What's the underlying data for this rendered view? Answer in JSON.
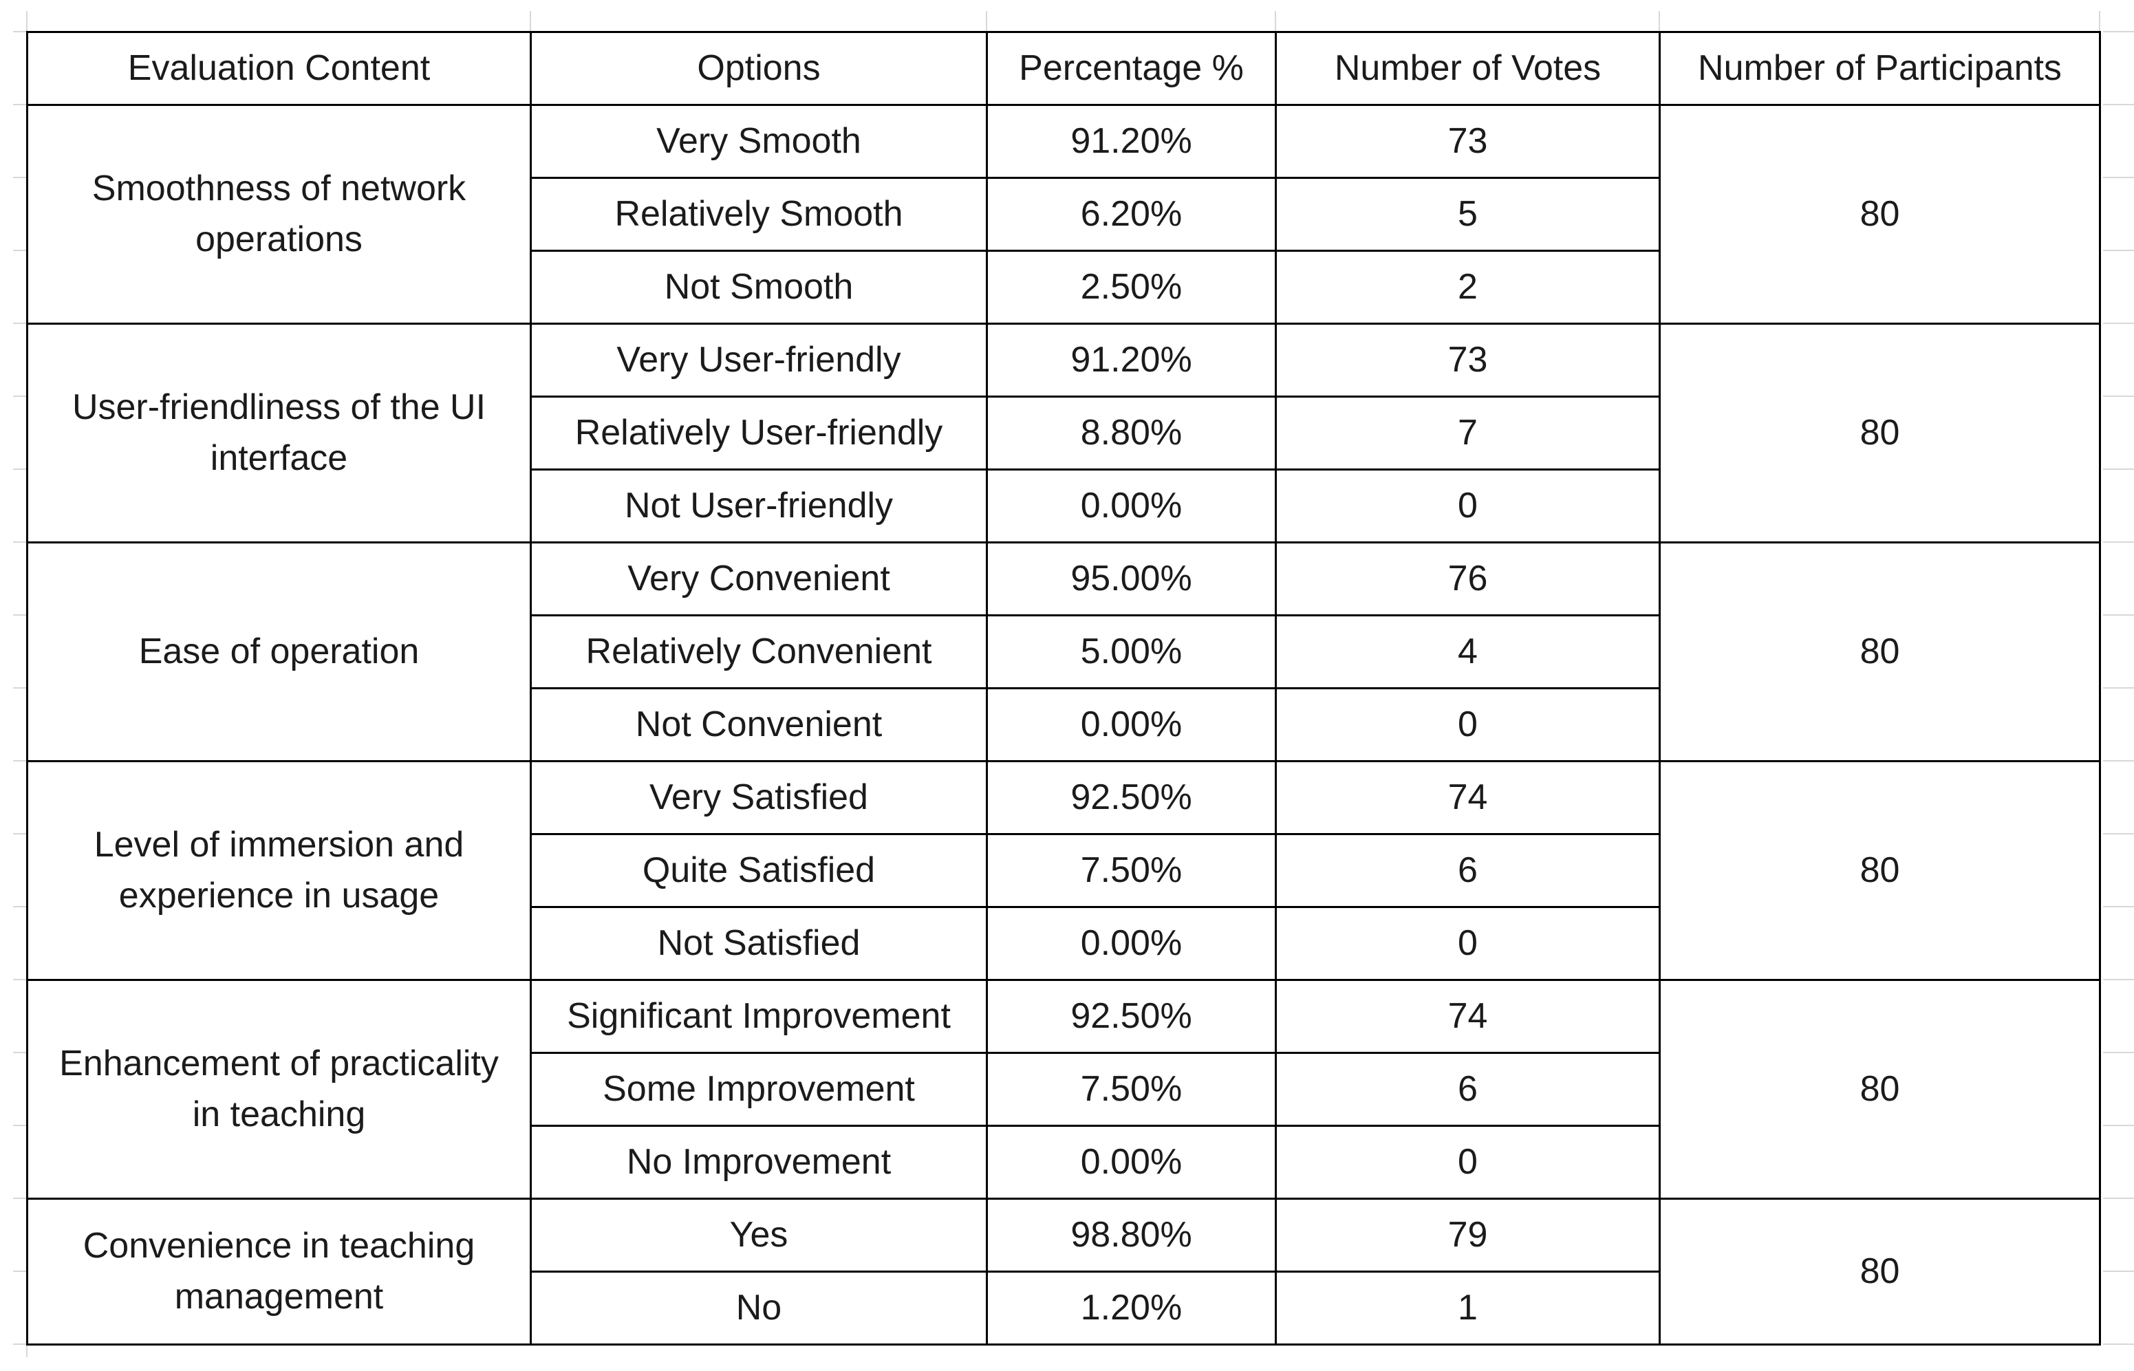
{
  "page": {
    "background": "#ffffff"
  },
  "colors": {
    "table_border": "#000000",
    "gridline": "#d8d8d8",
    "text": "#1b1b1b"
  },
  "table": {
    "headers": [
      "Evaluation Content",
      "Options",
      "Percentage %",
      "Number of Votes",
      "Number of Participants"
    ],
    "groups": [
      {
        "content": "Smoothness of network\noperations",
        "participants": "80",
        "rows": [
          {
            "option": "Very Smooth",
            "percentage": "91.20%",
            "votes": "73"
          },
          {
            "option": "Relatively Smooth",
            "percentage": "6.20%",
            "votes": "5"
          },
          {
            "option": "Not Smooth",
            "percentage": "2.50%",
            "votes": "2"
          }
        ]
      },
      {
        "content": "User-friendliness of the UI\ninterface",
        "participants": "80",
        "rows": [
          {
            "option": "Very User-friendly",
            "percentage": "91.20%",
            "votes": "73"
          },
          {
            "option": "Relatively User-friendly",
            "percentage": "8.80%",
            "votes": "7"
          },
          {
            "option": "Not User-friendly",
            "percentage": "0.00%",
            "votes": "0"
          }
        ]
      },
      {
        "content": "Ease of operation",
        "participants": "80",
        "rows": [
          {
            "option": "Very Convenient",
            "percentage": "95.00%",
            "votes": "76"
          },
          {
            "option": "Relatively Convenient",
            "percentage": "5.00%",
            "votes": "4"
          },
          {
            "option": "Not Convenient",
            "percentage": "0.00%",
            "votes": "0"
          }
        ]
      },
      {
        "content": "Level of immersion and\nexperience in usage",
        "participants": "80",
        "rows": [
          {
            "option": "Very Satisfied",
            "percentage": "92.50%",
            "votes": "74"
          },
          {
            "option": "Quite Satisfied",
            "percentage": "7.50%",
            "votes": "6"
          },
          {
            "option": "Not Satisfied",
            "percentage": "0.00%",
            "votes": "0"
          }
        ]
      },
      {
        "content": "Enhancement of practicality\nin teaching",
        "participants": "80",
        "rows": [
          {
            "option": "Significant Improvement",
            "percentage": "92.50%",
            "votes": "74"
          },
          {
            "option": "Some Improvement",
            "percentage": "7.50%",
            "votes": "6"
          },
          {
            "option": "No Improvement",
            "percentage": "0.00%",
            "votes": "0"
          }
        ]
      },
      {
        "content": "Convenience in teaching\nmanagement",
        "participants": "80",
        "rows": [
          {
            "option": "Yes",
            "percentage": "98.80%",
            "votes": "79"
          },
          {
            "option": "No",
            "percentage": "1.20%",
            "votes": "1"
          }
        ]
      }
    ]
  }
}
